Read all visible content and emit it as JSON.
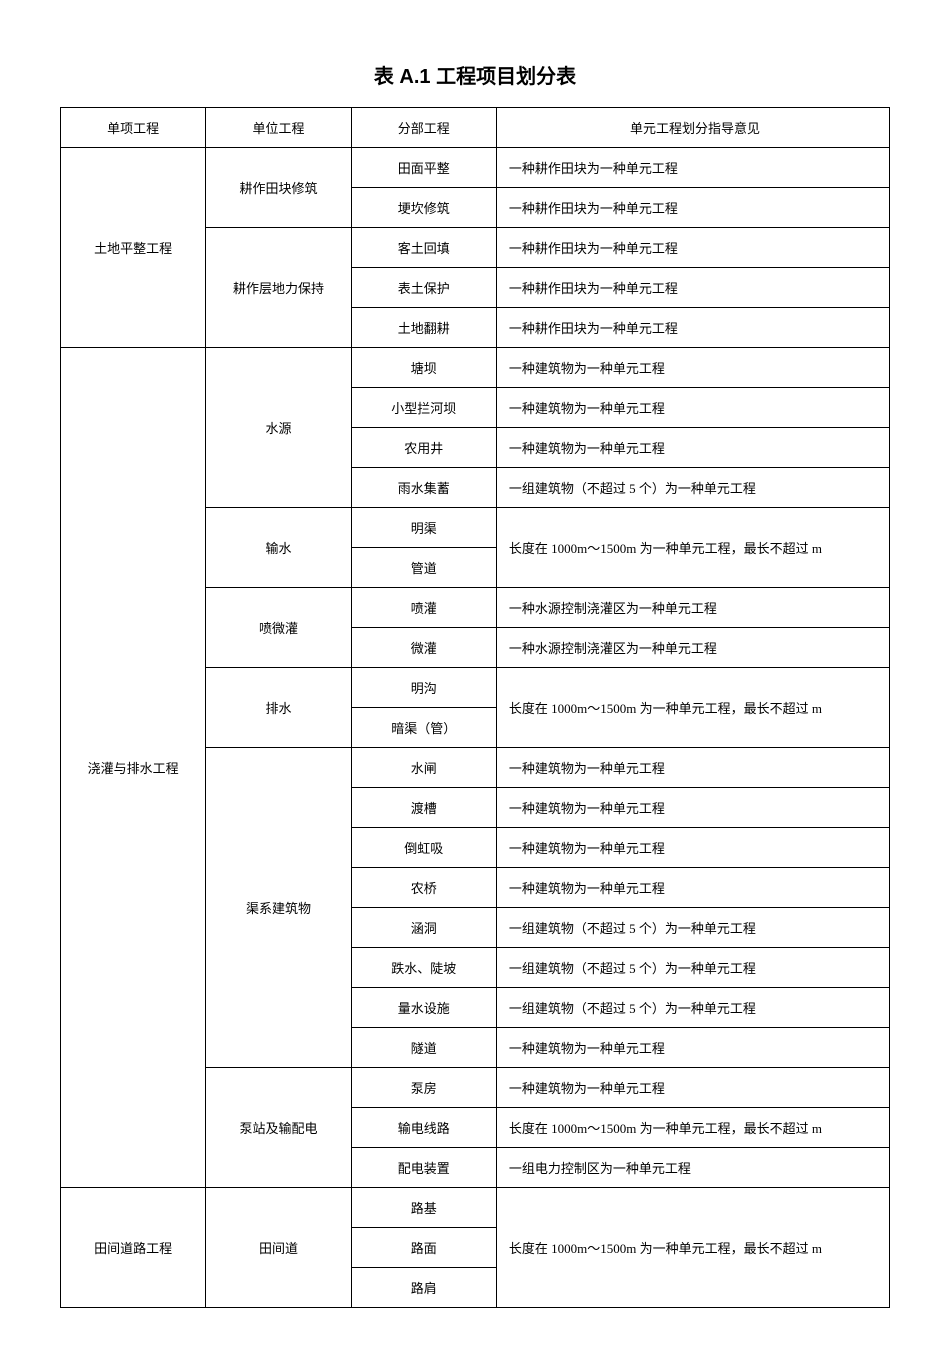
{
  "title": "表 A.1 工程项目划分表",
  "headers": {
    "c1": "单项工程",
    "c2": "单位工程",
    "c3": "分部工程",
    "c4": "单元工程划分指导意见"
  },
  "rows": [
    {
      "c1": "土地平整工程",
      "c1span": 5,
      "c2": "耕作田块修筑",
      "c2span": 2,
      "c3": "田面平整",
      "c4": "一种耕作田块为一种单元工程"
    },
    {
      "c3": "埂坎修筑",
      "c4": "一种耕作田块为一种单元工程"
    },
    {
      "c2": "耕作层地力保持",
      "c2span": 3,
      "c3": "客土回填",
      "c4": "一种耕作田块为一种单元工程"
    },
    {
      "c3": "表土保护",
      "c4": "一种耕作田块为一种单元工程"
    },
    {
      "c3": "土地翻耕",
      "c4": "一种耕作田块为一种单元工程"
    },
    {
      "c1": "浇灌与排水工程",
      "c1span": 21,
      "c2": "水源",
      "c2span": 4,
      "c3": "塘坝",
      "c4": "一种建筑物为一种单元工程"
    },
    {
      "c3": "小型拦河坝",
      "c4": "一种建筑物为一种单元工程"
    },
    {
      "c3": "农用井",
      "c4": "一种建筑物为一种单元工程"
    },
    {
      "c3": "雨水集蓄",
      "c4": "一组建筑物（不超过 5 个）为一种单元工程"
    },
    {
      "c2": "输水",
      "c2span": 2,
      "c3": "明渠",
      "c4": "长度在 1000m～1500m 为一种单元工程，最长不超过 m",
      "c4span": 2
    },
    {
      "c3": "管道"
    },
    {
      "c2": "喷微灌",
      "c2span": 2,
      "c3": "喷灌",
      "c4": "一种水源控制浇灌区为一种单元工程"
    },
    {
      "c3": "微灌",
      "c4": "一种水源控制浇灌区为一种单元工程"
    },
    {
      "c2": "排水",
      "c2span": 2,
      "c3": "明沟",
      "c4": "长度在 1000m～1500m 为一种单元工程，最长不超过 m",
      "c4span": 2
    },
    {
      "c3": "暗渠（管）"
    },
    {
      "c2": "渠系建筑物",
      "c2span": 8,
      "c3": "水闸",
      "c4": "一种建筑物为一种单元工程"
    },
    {
      "c3": "渡槽",
      "c4": "一种建筑物为一种单元工程"
    },
    {
      "c3": "倒虹吸",
      "c4": "一种建筑物为一种单元工程"
    },
    {
      "c3": "农桥",
      "c4": "一种建筑物为一种单元工程"
    },
    {
      "c3": "涵洞",
      "c4": "一组建筑物（不超过 5 个）为一种单元工程"
    },
    {
      "c3": "跌水、陡坡",
      "c4": "一组建筑物（不超过 5 个）为一种单元工程"
    },
    {
      "c3": "量水设施",
      "c4": "一组建筑物（不超过 5 个）为一种单元工程"
    },
    {
      "c3": "隧道",
      "c4": "一种建筑物为一种单元工程"
    },
    {
      "c2": "泵站及输配电",
      "c2span": 3,
      "c3": "泵房",
      "c4": "一种建筑物为一种单元工程"
    },
    {
      "c3": "输电线路",
      "c4": "长度在 1000m～1500m 为一种单元工程，最长不超过 m"
    },
    {
      "c3": "配电装置",
      "c4": "一组电力控制区为一种单元工程"
    },
    {
      "c1": "田间道路工程",
      "c1span": 3,
      "c2": "田间道",
      "c2span": 3,
      "c3": "路基",
      "c4": "长度在 1000m～1500m 为一种单元工程，最长不超过 m",
      "c4span": 3
    },
    {
      "c3": "路面"
    },
    {
      "c3": "路肩"
    }
  ]
}
